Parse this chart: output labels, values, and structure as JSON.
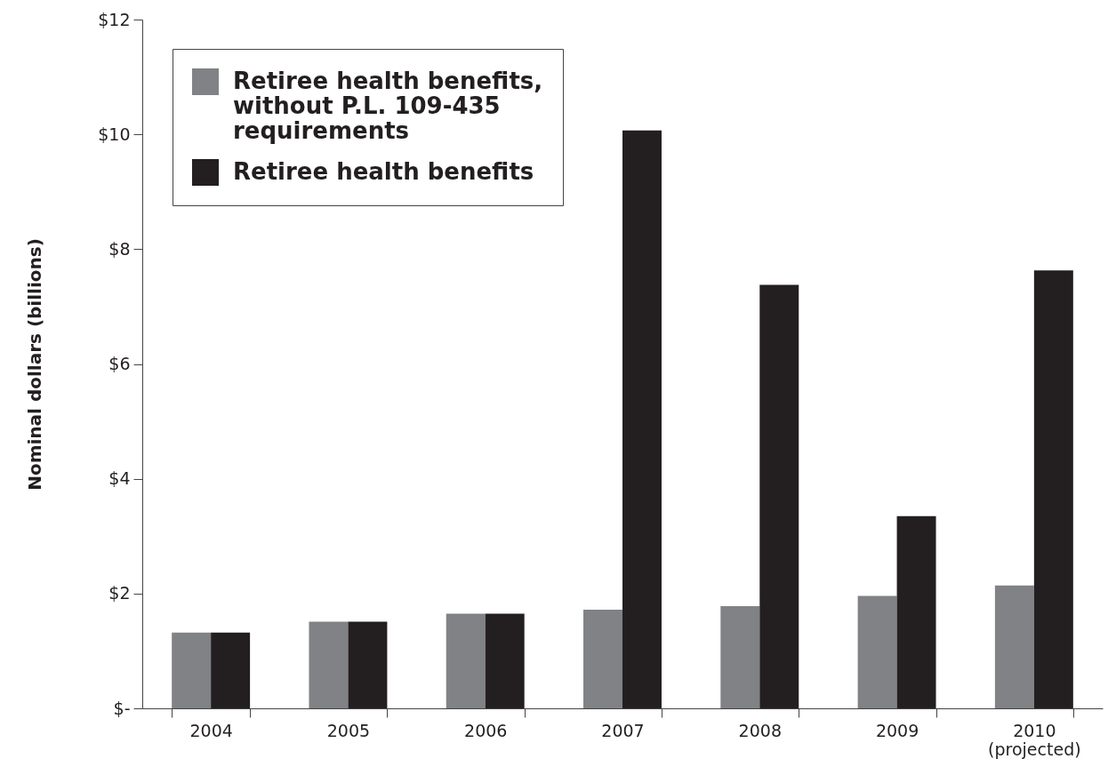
{
  "chart_data": {
    "type": "bar",
    "ylabel": "Nominal dollars (billions)",
    "categories": [
      "2004",
      "2005",
      "2006",
      "2007",
      "2008",
      "2009",
      "2010\n(projected)"
    ],
    "series": [
      {
        "name": "Retiree health benefits, without P.L. 109-435 requirements",
        "color": "#808285",
        "values": [
          1.32,
          1.51,
          1.65,
          1.72,
          1.78,
          1.96,
          2.14
        ]
      },
      {
        "name": "Retiree health benefits",
        "color": "#231f20",
        "values": [
          1.32,
          1.51,
          1.65,
          10.07,
          7.38,
          3.35,
          7.63
        ]
      }
    ],
    "ylim": [
      0,
      12
    ],
    "yticks": [
      {
        "value": 0,
        "label": "$-"
      },
      {
        "value": 2,
        "label": "$2"
      },
      {
        "value": 4,
        "label": "$4"
      },
      {
        "value": 6,
        "label": "$6"
      },
      {
        "value": 8,
        "label": "$8"
      },
      {
        "value": 10,
        "label": "$10"
      },
      {
        "value": 12,
        "label": "$12"
      }
    ],
    "grid": false,
    "legend": "top left"
  }
}
